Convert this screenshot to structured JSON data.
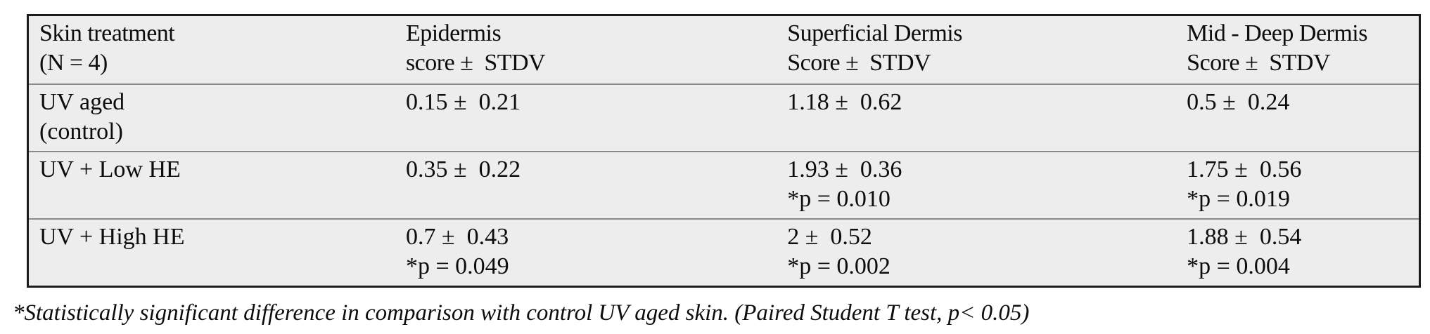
{
  "colors": {
    "page_background": "#ffffff",
    "table_background": "#ededed",
    "outer_border": "#1c1c1c",
    "row_separator": "#8a8a8a",
    "text_color": "#0d0d0d"
  },
  "table": {
    "headers": [
      "Skin treatment\n(N = 4)",
      "Epidermis\nscore ±  STDV",
      "Superficial Dermis\nScore ±  STDV",
      "Mid - Deep Dermis\nScore ±  STDV"
    ],
    "rows": [
      {
        "cells": [
          "UV aged\n(control)",
          "0.15 ±  0.21",
          "1.18 ±  0.62",
          "0.5 ±  0.24"
        ]
      },
      {
        "cells": [
          "UV + Low HE",
          "0.35 ±  0.22",
          "1.93 ±  0.36\n*p = 0.010",
          "1.75 ±  0.56\n*p = 0.019"
        ]
      },
      {
        "cells": [
          "UV + High HE",
          "0.7 ±  0.43\n*p = 0.049",
          "2 ±  0.52\n*p = 0.002",
          "1.88 ±  0.54\n*p = 0.004"
        ]
      }
    ]
  },
  "footnote": "*Statistically significant difference in comparison with control UV aged skin. (Paired Student T test, p< 0.05)"
}
